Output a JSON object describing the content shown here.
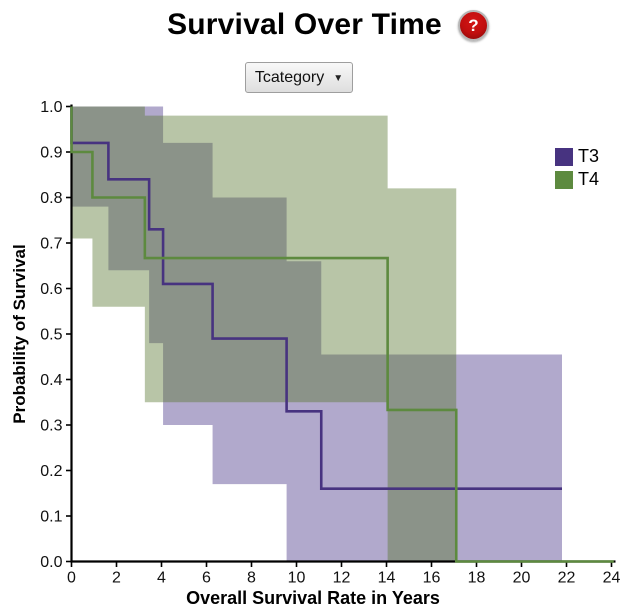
{
  "header": {
    "title": "Survival Over Time",
    "help_glyph": "?"
  },
  "controls": {
    "dropdown": {
      "label": "Tcategory",
      "arrow": "▼"
    }
  },
  "chart_data": {
    "type": "line",
    "subtype": "kaplan-meier-step",
    "title": "Survival Over Time",
    "xlabel": "Overall Survival Rate in Years",
    "ylabel": "Probability of Survival",
    "xlim": [
      0,
      24
    ],
    "ylim": [
      0,
      1
    ],
    "xticks": [
      0,
      2,
      4,
      6,
      8,
      10,
      12,
      14,
      16,
      18,
      20,
      22,
      24
    ],
    "yticks": [
      "0.0",
      "0.1",
      "0.2",
      "0.3",
      "0.4",
      "0.5",
      "0.6",
      "0.7",
      "0.8",
      "0.9",
      "1.0"
    ],
    "grid": false,
    "legend_position": "right",
    "series": [
      {
        "name": "T3",
        "color": "#473380",
        "band_fill": "#53418f",
        "band_opacity": 0.45,
        "steps": [
          {
            "t": 0.0,
            "s": 1.0
          },
          {
            "t": 0.0,
            "s": 0.92
          },
          {
            "t": 1.64,
            "s": 0.84
          },
          {
            "t": 3.45,
            "s": 0.73
          },
          {
            "t": 4.07,
            "s": 0.61
          },
          {
            "t": 6.27,
            "s": 0.49
          },
          {
            "t": 9.56,
            "s": 0.33
          },
          {
            "t": 11.1,
            "s": 0.16
          },
          {
            "t": 21.8,
            "s": 0.16
          }
        ],
        "ci_band": [
          {
            "t0": 0.0,
            "t1": 1.64,
            "hi": 1.0,
            "lo": 0.78
          },
          {
            "t0": 1.64,
            "t1": 3.45,
            "hi": 1.0,
            "lo": 0.64
          },
          {
            "t0": 3.45,
            "t1": 4.07,
            "hi": 1.0,
            "lo": 0.48
          },
          {
            "t0": 4.07,
            "t1": 6.27,
            "hi": 0.92,
            "lo": 0.3
          },
          {
            "t0": 6.27,
            "t1": 9.56,
            "hi": 0.8,
            "lo": 0.17
          },
          {
            "t0": 9.56,
            "t1": 11.1,
            "hi": 0.66,
            "lo": 0.0
          },
          {
            "t0": 11.1,
            "t1": 21.8,
            "hi": 0.455,
            "lo": 0.0
          }
        ]
      },
      {
        "name": "T4",
        "color": "#5d8a3f",
        "band_fill": "#55752e",
        "band_opacity": 0.42,
        "steps": [
          {
            "t": 0.0,
            "s": 1.0
          },
          {
            "t": 0.0,
            "s": 0.9
          },
          {
            "t": 0.93,
            "s": 0.8
          },
          {
            "t": 3.26,
            "s": 0.667
          },
          {
            "t": 14.05,
            "s": 0.333
          },
          {
            "t": 17.1,
            "s": 0.0
          },
          {
            "t": 24.1,
            "s": 0.0
          }
        ],
        "ci_band": [
          {
            "t0": 0.0,
            "t1": 0.93,
            "hi": 1.0,
            "lo": 0.71
          },
          {
            "t0": 0.93,
            "t1": 3.26,
            "hi": 1.0,
            "lo": 0.56
          },
          {
            "t0": 3.26,
            "t1": 14.05,
            "hi": 0.98,
            "lo": 0.35
          },
          {
            "t0": 14.05,
            "t1": 17.1,
            "hi": 0.82,
            "lo": 0.0
          }
        ]
      }
    ]
  }
}
